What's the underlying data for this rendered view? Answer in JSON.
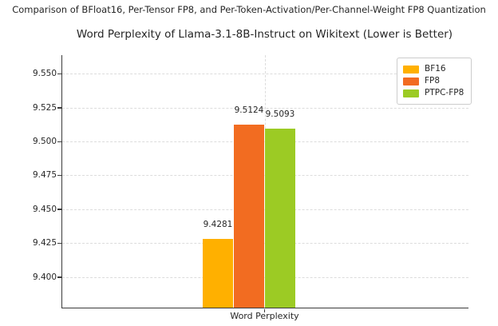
{
  "figure": {
    "suptitle": "Comparison of BFloat16, Per-Tensor FP8, and Per-Token-Activation/Per-Channel-Weight FP8 Quantization",
    "background": "#ffffff"
  },
  "chart_data": {
    "type": "bar",
    "title": "Word Perplexity of Llama-3.1-8B-Instruct on Wikitext (Lower is Better)",
    "categories": [
      "Word Perplexity"
    ],
    "series": [
      {
        "name": "BF16",
        "color": "#FFB000",
        "values": [
          9.4281
        ]
      },
      {
        "name": "FP8",
        "color": "#F26C21",
        "values": [
          9.5124
        ]
      },
      {
        "name": "PTPC-FP8",
        "color": "#9CCB24",
        "values": [
          9.5093
        ]
      }
    ],
    "bar_labels": [
      "9.4281",
      "9.5124",
      "9.5093"
    ],
    "xlabel": "Word Perplexity",
    "ylabel": "",
    "ylim": [
      9.3774,
      9.5637
    ],
    "yticks": [
      9.4,
      9.425,
      9.45,
      9.475,
      9.5,
      9.525,
      9.55
    ],
    "ytick_labels": [
      "9.400",
      "9.425",
      "9.450",
      "9.475",
      "9.500",
      "9.525",
      "9.550"
    ],
    "grid": true,
    "grid_style": "dashed",
    "legend": {
      "position": "upper right",
      "entries": [
        "BF16",
        "FP8",
        "PTPC-FP8"
      ]
    },
    "spine_color": "#3b3b3b",
    "grid_color": "#dcdcdc",
    "text_color": "#262626"
  }
}
